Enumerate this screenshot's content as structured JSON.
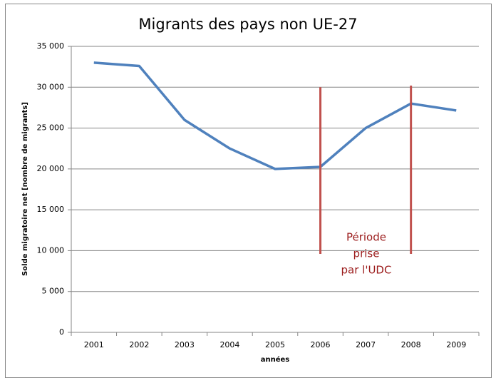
{
  "chart_data": {
    "type": "line",
    "title": "Migrants des pays non UE-27",
    "x_label": "années",
    "y_label": "Solde migratoire net [nombre de migrants]",
    "categories": [
      "2001",
      "2002",
      "2003",
      "2004",
      "2005",
      "2006",
      "2007",
      "2008",
      "2009"
    ],
    "series": [
      {
        "name": "Solde migratoire net",
        "color": "#4f81bd",
        "values": [
          33000,
          32600,
          26000,
          22500,
          20000,
          20250,
          25000,
          28000,
          27150
        ]
      }
    ],
    "ylim": [
      0,
      35000
    ],
    "yticks": [
      0,
      {
        "value": 5000,
        "label": "5 000"
      },
      {
        "value": 10000,
        "label": "10 000"
      },
      {
        "value": 15000,
        "label": "15 000"
      },
      {
        "value": 20000,
        "label": "20 000"
      },
      {
        "value": 25000,
        "label": "25 000"
      },
      {
        "value": 30000,
        "label": "30 000"
      },
      {
        "value": 35000,
        "label": "35 000"
      }
    ],
    "grid": true,
    "legend": false,
    "annotation": {
      "text": [
        "Période",
        "prise",
        "par l'UDC"
      ],
      "color": "#9b1b1b",
      "line_color": "#c0504d",
      "lines": [
        {
          "x": "2006",
          "y": [
            9600,
            30000
          ]
        },
        {
          "x": "2008",
          "y": [
            9600,
            30200
          ]
        }
      ]
    }
  }
}
